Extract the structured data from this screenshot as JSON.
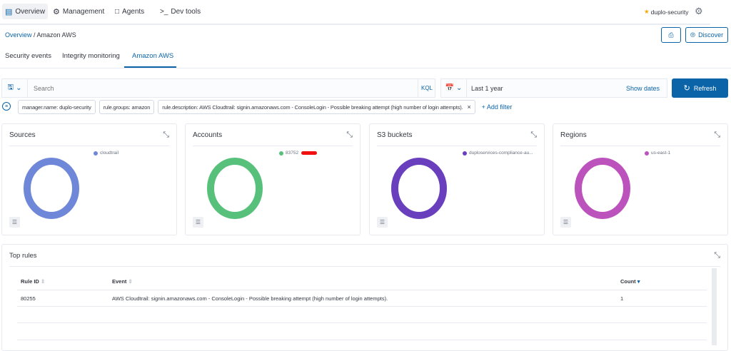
{
  "nav": {
    "items": [
      {
        "label": "Overview",
        "icon": "chart-icon"
      },
      {
        "label": "Management",
        "icon": "gear-icon"
      },
      {
        "label": "Agents",
        "icon": "monitor-icon"
      },
      {
        "label": "Dev tools",
        "icon": "terminal-icon"
      }
    ],
    "user": "duplo-security"
  },
  "breadcrumb": {
    "root": "Overview",
    "current": "Amazon AWS"
  },
  "actions": {
    "discover": "Discover"
  },
  "tabs": [
    {
      "label": "Security events"
    },
    {
      "label": "Integrity monitoring"
    },
    {
      "label": "Amazon AWS",
      "active": true
    }
  ],
  "search": {
    "placeholder": "Search",
    "language": "KQL"
  },
  "date": {
    "value": "Last 1 year",
    "show_dates": "Show dates"
  },
  "refresh": "Refresh",
  "filters": [
    "manager.name: duplo-security",
    "rule.groups: amazon",
    "rule.description: AWS Cloudtrail: signin.amazonaws.com - ConsoleLogin - Possible breaking attempt (high number of login attempts)."
  ],
  "add_filter": "+ Add filter",
  "cards": [
    {
      "title": "Sources",
      "legend": "cloudtrail",
      "color": "#6f87d8",
      "value": 1
    },
    {
      "title": "Accounts",
      "legend": "83752",
      "color": "#57c17b",
      "value": 1
    },
    {
      "title": "S3 buckets",
      "legend": "duploservices-compliance-au...",
      "color": "#6a3fbd",
      "value": 1
    },
    {
      "title": "Regions",
      "legend": "us-east-1",
      "color": "#bc52bc",
      "value": 1
    }
  ],
  "top_rules": {
    "title": "Top rules",
    "columns": [
      "Rule ID",
      "Event",
      "Count"
    ],
    "rows": [
      {
        "rule_id": "80255",
        "event": "AWS Cloudtrail: signin.amazonaws.com - ConsoleLogin - Possible breaking attempt (high number of login attempts).",
        "count": "1"
      }
    ]
  }
}
